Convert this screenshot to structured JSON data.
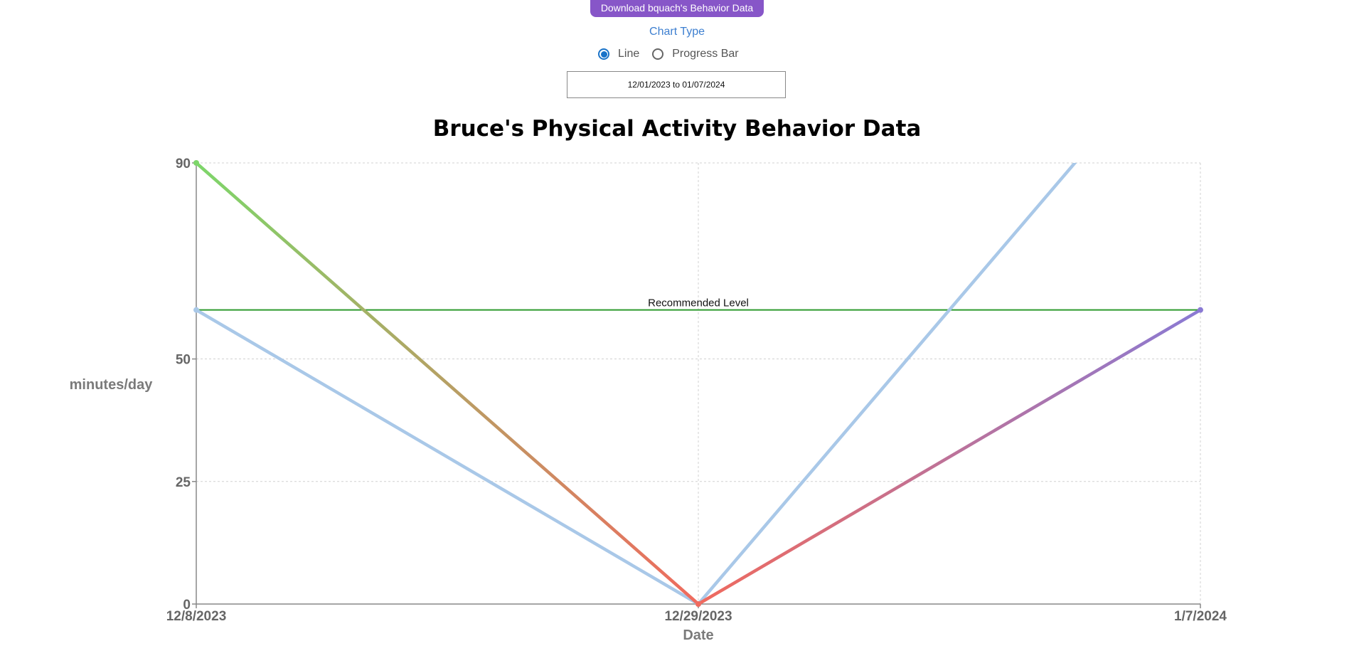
{
  "controls": {
    "download_label": "Download bquach's Behavior Data",
    "chart_type_label": "Chart Type",
    "chart_type_options": [
      "Line",
      "Progress Bar"
    ],
    "chart_type_selected": "Line",
    "date_range": "12/01/2023 to 01/07/2024"
  },
  "colors": {
    "download_button": "#8756c8",
    "chart_type_label": "#3d7fd0",
    "radio_selected": "#1a73c8",
    "reference_line": "#2e9a2e",
    "secondary_series": "#a9c8e8",
    "gradient_high": "#7dd66a",
    "gradient_low": "#f06a5e",
    "gradient_goal": "#8a7ad4"
  },
  "chart_data": {
    "type": "line",
    "title": "Bruce's Physical Activity Behavior Data",
    "xlabel": "Date",
    "ylabel": "minutes/day",
    "x_ticks": [
      "12/8/2023",
      "12/29/2023",
      "1/7/2024"
    ],
    "y_ticks": [
      0,
      25,
      50,
      90
    ],
    "ylim": [
      0,
      90
    ],
    "grid": true,
    "reference_line": {
      "label": "Recommended Level",
      "value": 60
    },
    "series": [
      {
        "x": [
          "12/8/2023",
          "12/29/2023",
          "1/7/2024"
        ],
        "values": [
          90,
          0,
          60
        ],
        "style": "gradient"
      },
      {
        "x": [
          "12/8/2023",
          "12/29/2023",
          "1/7/2024"
        ],
        "values": [
          60,
          0,
          120
        ],
        "style": "light-blue"
      }
    ]
  }
}
